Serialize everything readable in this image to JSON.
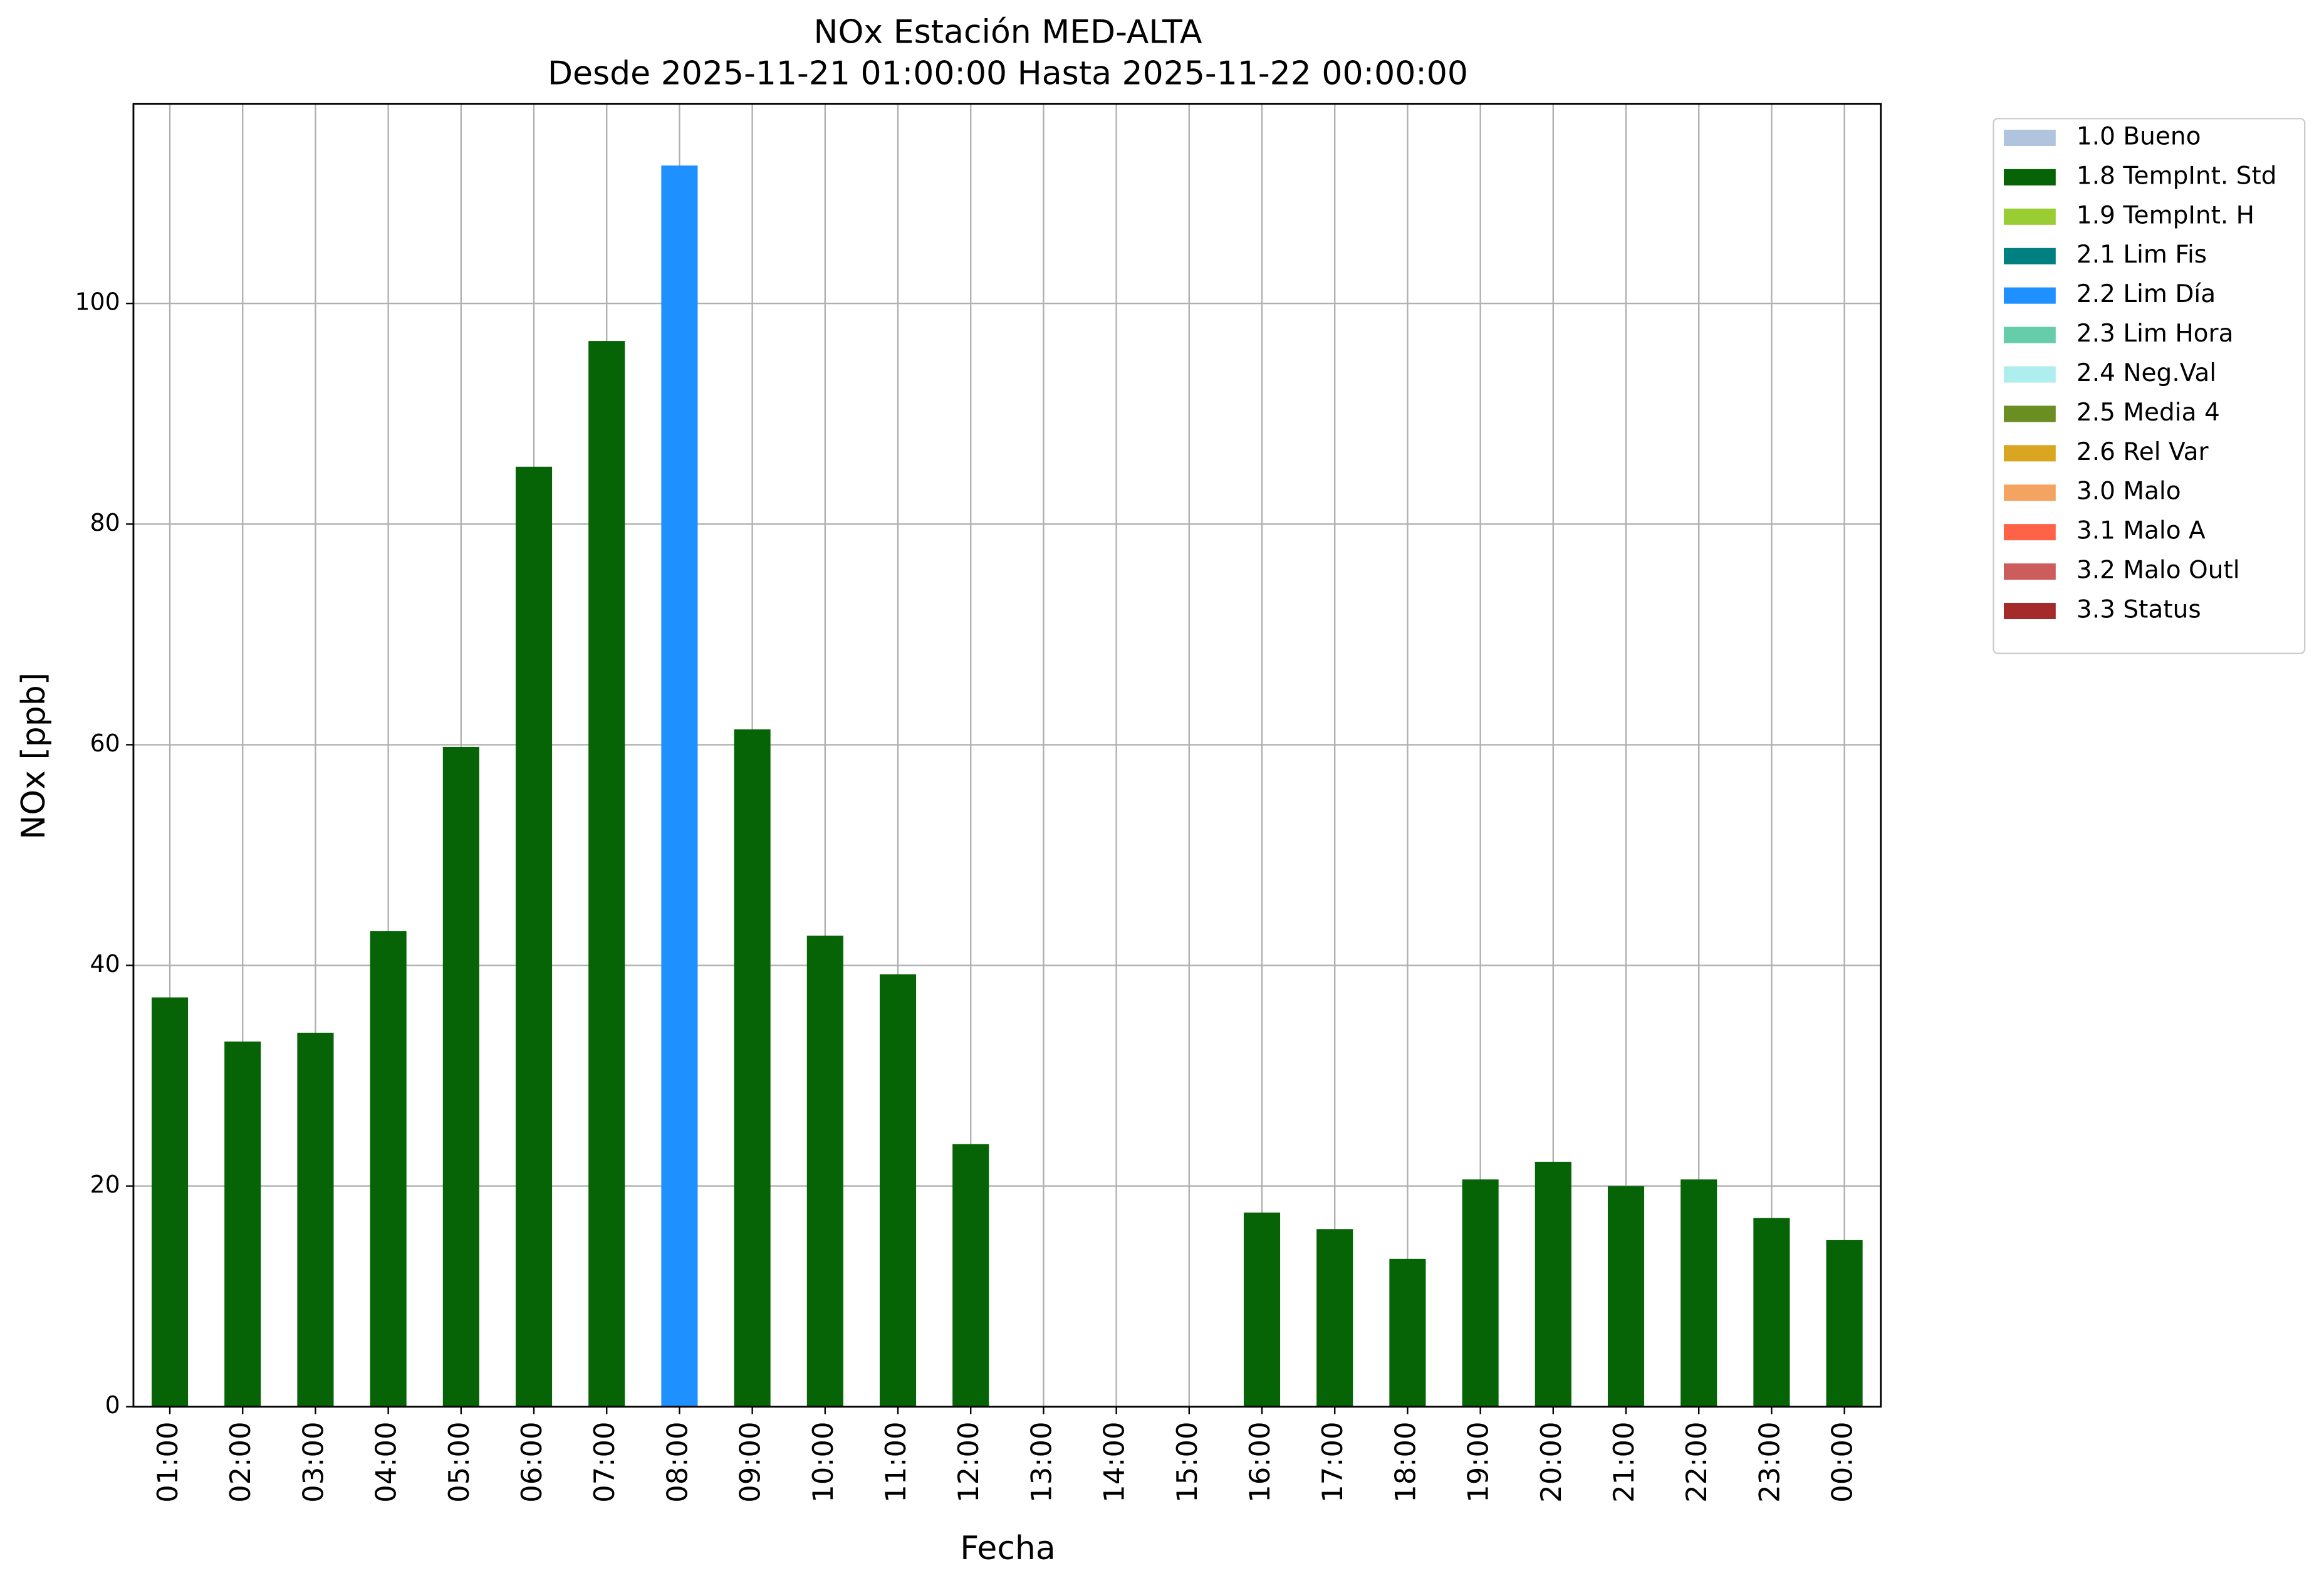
{
  "chart_data": {
    "type": "bar",
    "stacked": true,
    "title": "NOx Estación MED-ALTA",
    "subtitle": "Desde 2025-11-21 01:00:00 Hasta 2025-11-22 00:00:00",
    "x_label": "Fecha",
    "y_label": "NOx [ppb]",
    "categories": [
      "01:00",
      "02:00",
      "03:00",
      "04:00",
      "05:00",
      "06:00",
      "07:00",
      "08:00",
      "09:00",
      "10:00",
      "11:00",
      "12:00",
      "13:00",
      "14:00",
      "15:00",
      "16:00",
      "17:00",
      "18:00",
      "19:00",
      "20:00",
      "21:00",
      "22:00",
      "23:00",
      "00:00"
    ],
    "series": [
      {
        "name": "1.0 Bueno",
        "color": "#b0c4de",
        "values": [
          null,
          null,
          null,
          null,
          null,
          null,
          null,
          null,
          null,
          null,
          null,
          null,
          null,
          null,
          null,
          null,
          null,
          null,
          null,
          null,
          null,
          null,
          null,
          null
        ]
      },
      {
        "name": "1.8 TempInt. Std",
        "color": "#066406",
        "values": [
          37.1,
          33.1,
          33.9,
          43.1,
          59.8,
          85.2,
          96.6,
          null,
          61.4,
          42.7,
          39.2,
          23.8,
          null,
          null,
          null,
          17.6,
          16.1,
          13.4,
          20.6,
          22.2,
          20.0,
          20.6,
          17.1,
          15.1
        ]
      },
      {
        "name": "1.9 TempInt. H",
        "color": "#9acd32",
        "values": [
          null,
          null,
          null,
          null,
          null,
          null,
          null,
          null,
          null,
          null,
          null,
          null,
          null,
          null,
          null,
          null,
          null,
          null,
          null,
          null,
          null,
          null,
          null,
          null
        ]
      },
      {
        "name": "2.1 Lim Fis",
        "color": "#008080",
        "values": [
          null,
          null,
          null,
          null,
          null,
          null,
          null,
          null,
          null,
          null,
          null,
          null,
          null,
          null,
          null,
          null,
          null,
          null,
          null,
          null,
          null,
          null,
          null,
          null
        ]
      },
      {
        "name": "2.2 Lim Día",
        "color": "#1e90ff",
        "values": [
          null,
          null,
          null,
          null,
          null,
          null,
          null,
          112.5,
          null,
          null,
          null,
          null,
          null,
          null,
          null,
          null,
          null,
          null,
          null,
          null,
          null,
          null,
          null,
          null
        ]
      },
      {
        "name": "2.3 Lim Hora",
        "color": "#66cdaa",
        "values": [
          null,
          null,
          null,
          null,
          null,
          null,
          null,
          null,
          null,
          null,
          null,
          null,
          null,
          null,
          null,
          null,
          null,
          null,
          null,
          null,
          null,
          null,
          null,
          null
        ]
      },
      {
        "name": "2.4 Neg.Val",
        "color": "#afeeee",
        "values": [
          null,
          null,
          null,
          null,
          null,
          null,
          null,
          null,
          null,
          null,
          null,
          null,
          null,
          null,
          null,
          null,
          null,
          null,
          null,
          null,
          null,
          null,
          null,
          null
        ]
      },
      {
        "name": "2.5 Media 4",
        "color": "#6b8e23",
        "values": [
          null,
          null,
          null,
          null,
          null,
          null,
          null,
          null,
          null,
          null,
          null,
          null,
          null,
          null,
          null,
          null,
          null,
          null,
          null,
          null,
          null,
          null,
          null,
          null
        ]
      },
      {
        "name": "2.6 Rel Var",
        "color": "#daa520",
        "values": [
          null,
          null,
          null,
          null,
          null,
          null,
          null,
          null,
          null,
          null,
          null,
          null,
          null,
          null,
          null,
          null,
          null,
          null,
          null,
          null,
          null,
          null,
          null,
          null
        ]
      },
      {
        "name": "3.0 Malo",
        "color": "#f4a460",
        "values": [
          null,
          null,
          null,
          null,
          null,
          null,
          null,
          null,
          null,
          null,
          null,
          null,
          null,
          null,
          null,
          null,
          null,
          null,
          null,
          null,
          null,
          null,
          null,
          null
        ]
      },
      {
        "name": "3.1 Malo A",
        "color": "#ff6347",
        "values": [
          null,
          null,
          null,
          null,
          null,
          null,
          null,
          null,
          null,
          null,
          null,
          null,
          null,
          null,
          null,
          null,
          null,
          null,
          null,
          null,
          null,
          null,
          null,
          null
        ]
      },
      {
        "name": "3.2 Malo Outl",
        "color": "#cd5c5c",
        "values": [
          null,
          null,
          null,
          null,
          null,
          null,
          null,
          null,
          null,
          null,
          null,
          null,
          null,
          null,
          null,
          null,
          null,
          null,
          null,
          null,
          null,
          null,
          null,
          null
        ]
      },
      {
        "name": "3.3 Status",
        "color": "#a52a2a",
        "values": [
          null,
          null,
          null,
          null,
          null,
          null,
          null,
          null,
          null,
          null,
          null,
          null,
          null,
          null,
          null,
          null,
          null,
          null,
          null,
          null,
          null,
          null,
          null,
          null
        ]
      }
    ],
    "ylim": [
      0,
      118.1
    ],
    "yticks": [
      0,
      20,
      40,
      60,
      80,
      100
    ],
    "grid": true,
    "legend": "outside-right"
  }
}
